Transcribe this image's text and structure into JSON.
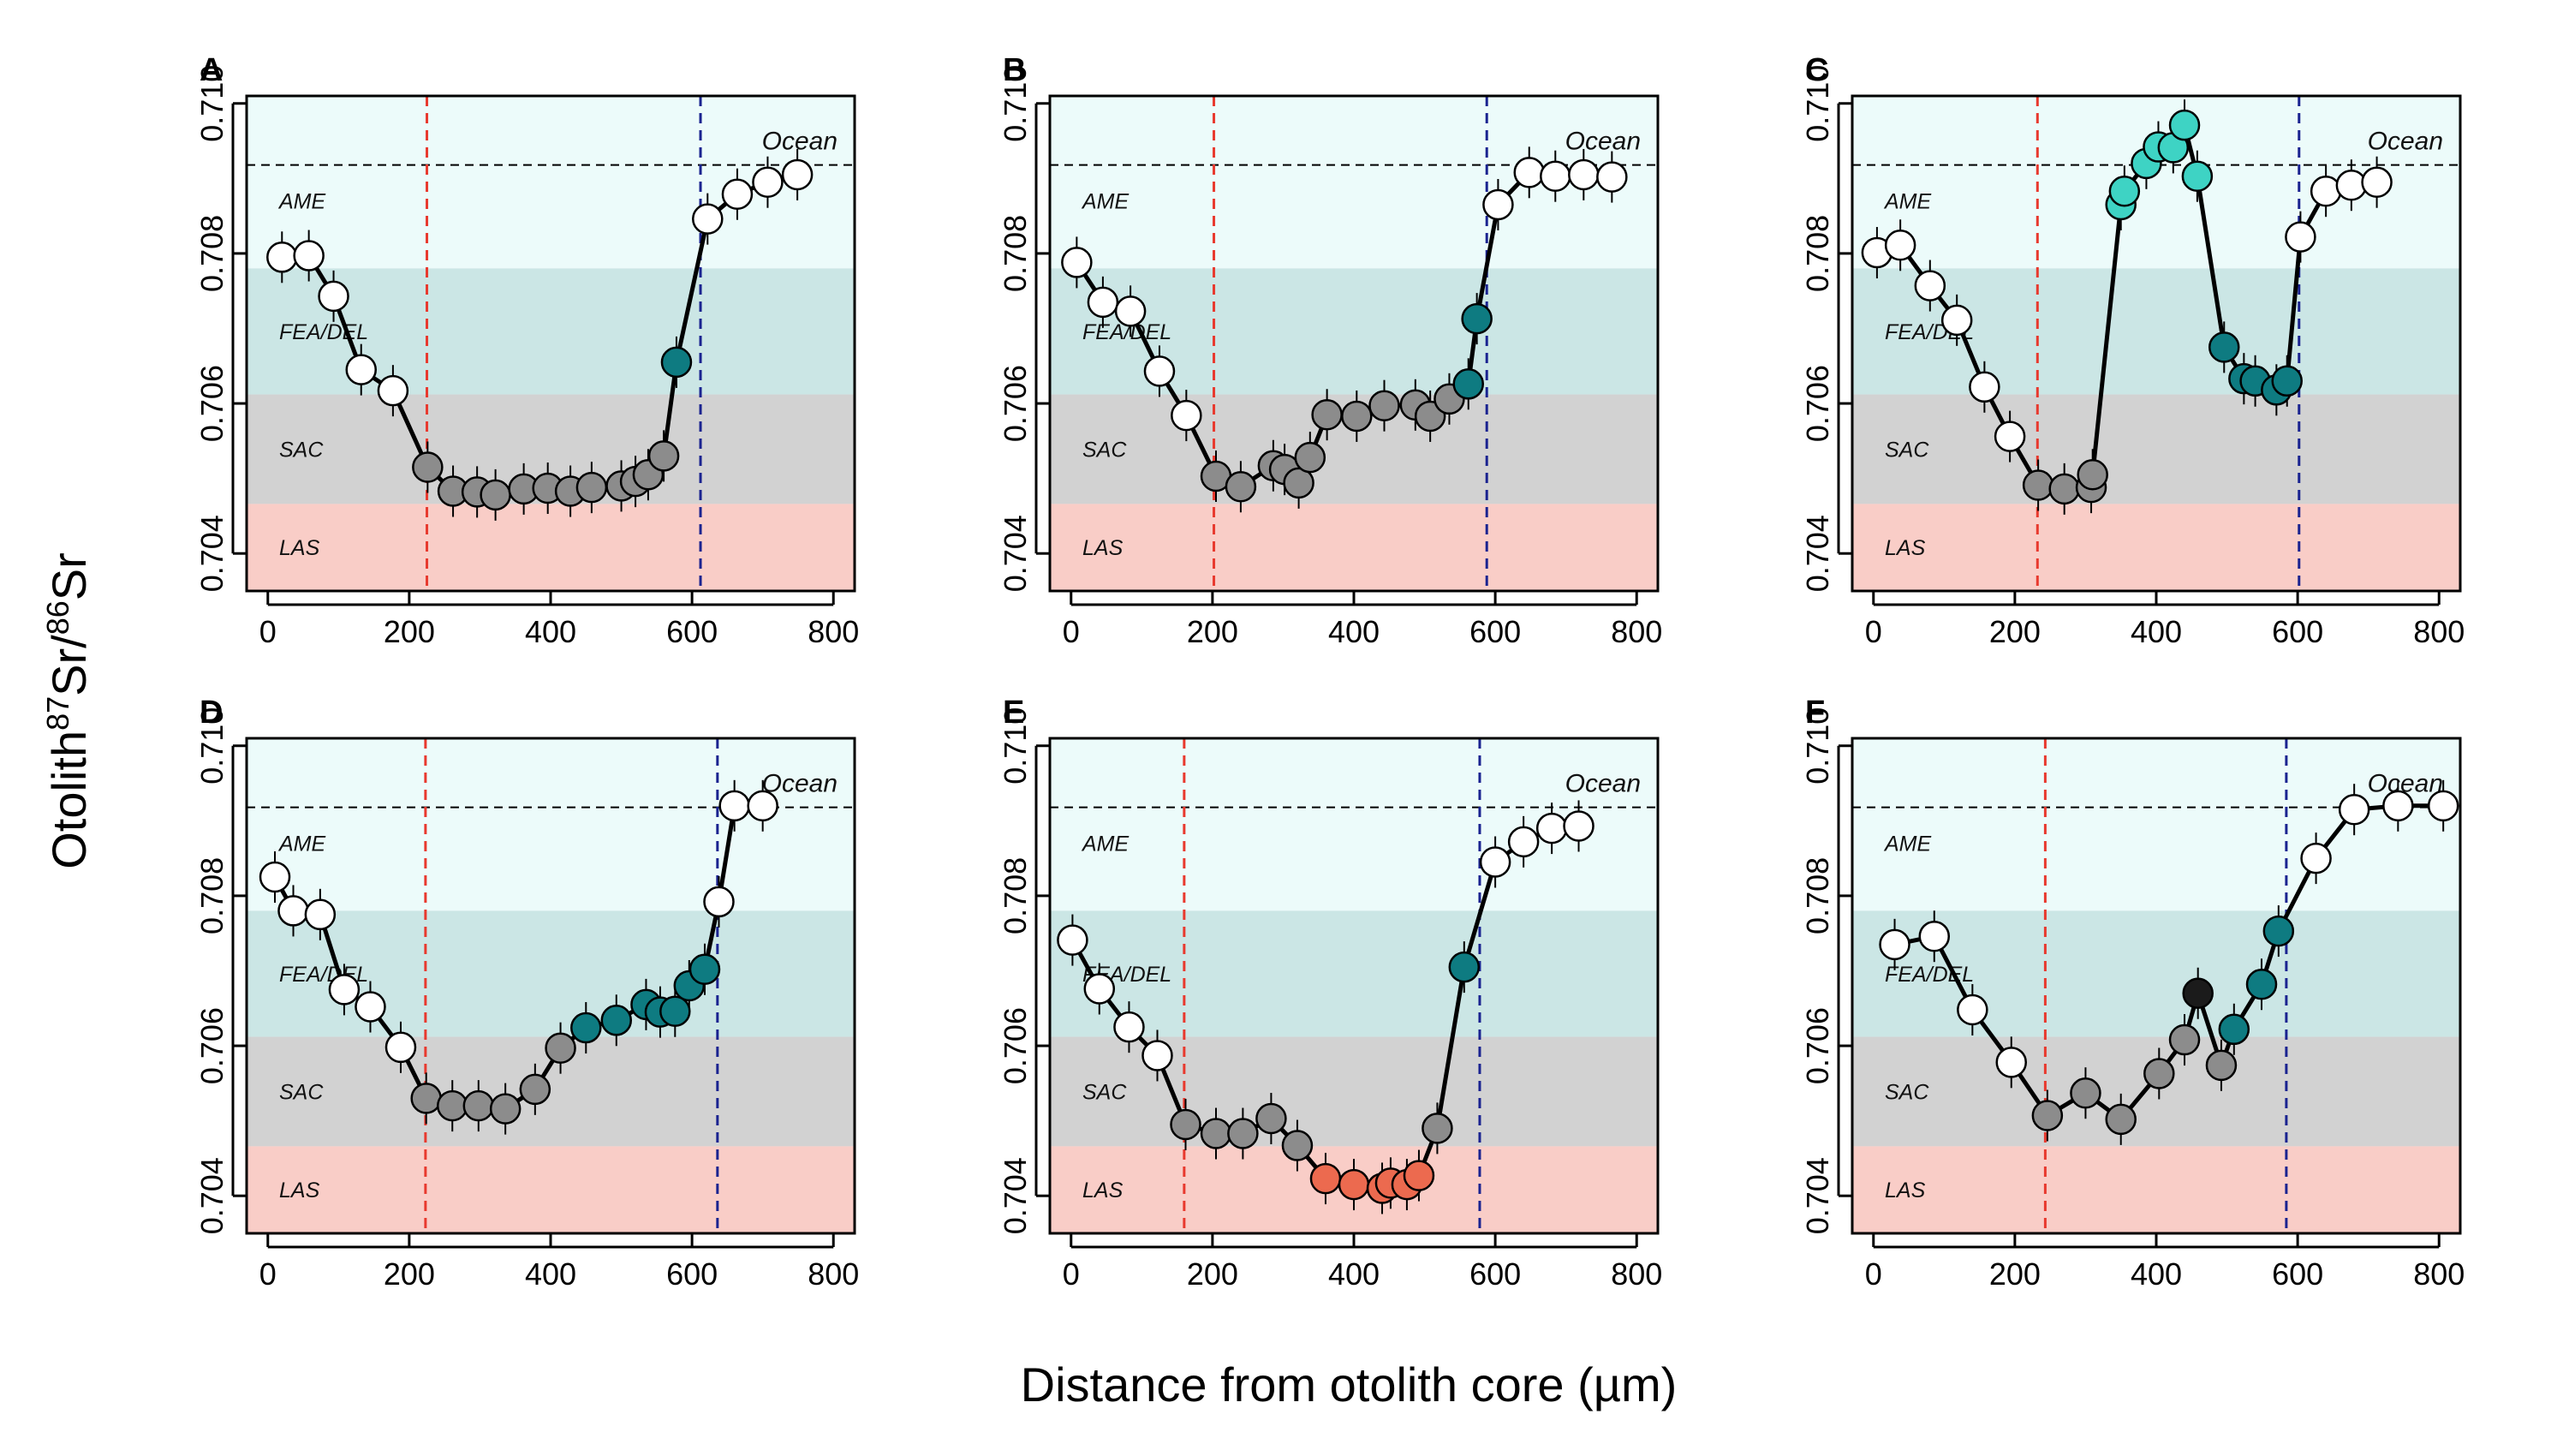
{
  "figure": {
    "ylabel_parts": [
      "Otolith",
      "87",
      "Sr/",
      "86",
      "Sr"
    ],
    "xlabel": "Distance from otolith core (µm)"
  },
  "colors": {
    "ame_zone": "#ecfbfa",
    "fea_zone": "#cbe6e5",
    "sac_zone": "#d2d2d2",
    "las_zone": "#f9cdc7",
    "white_point": "#ffffff",
    "grey_point": "#8c8c8c",
    "teal_point": "#0e7b81",
    "cyan_point": "#3ed3c4",
    "orange_point": "#ec6a4f",
    "black_point": "#1b1b1b",
    "line": "#000000",
    "red_dashed": "#e8392e",
    "blue_dashed": "#1a2390",
    "ocean_dashed": "#000000"
  },
  "chart_data": [
    {
      "type": "scatter",
      "panel": "A",
      "x_ticks": [
        "0",
        "200",
        "400",
        "600",
        "800"
      ],
      "y_ticks": [
        "0.704",
        "0.706",
        "0.708",
        "0.710"
      ],
      "xlim": [
        -30,
        830
      ],
      "ylim": [
        0.7035,
        0.7101
      ],
      "zones": [
        {
          "label": "AME",
          "from": 0.7078,
          "to": 0.7101,
          "color_key": "ame_zone"
        },
        {
          "label": "FEA/DEL",
          "from": 0.70612,
          "to": 0.7078,
          "color_key": "fea_zone"
        },
        {
          "label": "SAC",
          "from": 0.70466,
          "to": 0.70612,
          "color_key": "sac_zone"
        },
        {
          "label": "LAS",
          "from": 0.7035,
          "to": 0.70466,
          "color_key": "las_zone"
        }
      ],
      "ocean_line": 0.70918,
      "ocean_label": "Ocean",
      "red_line_x": 225,
      "blue_line_x": 612,
      "points": [
        [
          20,
          0.70795,
          "white"
        ],
        [
          58,
          0.70797,
          "white"
        ],
        [
          93,
          0.70743,
          "white"
        ],
        [
          132,
          0.70645,
          "white"
        ],
        [
          177,
          0.70617,
          "white"
        ],
        [
          226,
          0.70515,
          "grey"
        ],
        [
          262,
          0.70483,
          "grey"
        ],
        [
          296,
          0.70482,
          "grey"
        ],
        [
          322,
          0.70478,
          "grey"
        ],
        [
          362,
          0.70486,
          "grey"
        ],
        [
          396,
          0.70487,
          "grey"
        ],
        [
          428,
          0.70483,
          "grey"
        ],
        [
          458,
          0.70488,
          "grey"
        ],
        [
          500,
          0.7049,
          "grey"
        ],
        [
          520,
          0.70496,
          "grey"
        ],
        [
          538,
          0.70505,
          "grey"
        ],
        [
          560,
          0.7053,
          "grey"
        ],
        [
          578,
          0.70655,
          "teal"
        ],
        [
          622,
          0.70846,
          "white"
        ],
        [
          664,
          0.70879,
          "white"
        ],
        [
          707,
          0.70895,
          "white"
        ],
        [
          749,
          0.70905,
          "white"
        ]
      ]
    },
    {
      "type": "scatter",
      "panel": "B",
      "x_ticks": [
        "0",
        "200",
        "400",
        "600",
        "800"
      ],
      "y_ticks": [
        "0.704",
        "0.706",
        "0.708",
        "0.710"
      ],
      "xlim": [
        -30,
        830
      ],
      "ylim": [
        0.7035,
        0.7101
      ],
      "zones": [
        {
          "label": "AME",
          "from": 0.7078,
          "to": 0.7101,
          "color_key": "ame_zone"
        },
        {
          "label": "FEA/DEL",
          "from": 0.70612,
          "to": 0.7078,
          "color_key": "fea_zone"
        },
        {
          "label": "SAC",
          "from": 0.70466,
          "to": 0.70612,
          "color_key": "sac_zone"
        },
        {
          "label": "LAS",
          "from": 0.7035,
          "to": 0.70466,
          "color_key": "las_zone"
        }
      ],
      "ocean_line": 0.70918,
      "ocean_label": "Ocean",
      "red_line_x": 202,
      "blue_line_x": 588,
      "points": [
        [
          8,
          0.70788,
          "white"
        ],
        [
          45,
          0.70735,
          "white"
        ],
        [
          84,
          0.70723,
          "white"
        ],
        [
          125,
          0.70643,
          "white"
        ],
        [
          163,
          0.70584,
          "white"
        ],
        [
          205,
          0.70503,
          "grey"
        ],
        [
          240,
          0.70489,
          "grey"
        ],
        [
          286,
          0.70517,
          "grey"
        ],
        [
          302,
          0.70512,
          "grey"
        ],
        [
          322,
          0.70494,
          "grey"
        ],
        [
          338,
          0.70528,
          "grey"
        ],
        [
          362,
          0.70585,
          "grey"
        ],
        [
          404,
          0.70583,
          "grey"
        ],
        [
          443,
          0.70597,
          "grey"
        ],
        [
          487,
          0.70598,
          "grey"
        ],
        [
          508,
          0.70583,
          "grey"
        ],
        [
          535,
          0.70606,
          "grey"
        ],
        [
          562,
          0.70626,
          "teal"
        ],
        [
          574,
          0.70713,
          "teal"
        ],
        [
          604,
          0.70865,
          "white"
        ],
        [
          648,
          0.70908,
          "white"
        ],
        [
          685,
          0.70903,
          "white"
        ],
        [
          725,
          0.70905,
          "white"
        ],
        [
          765,
          0.70902,
          "white"
        ]
      ]
    },
    {
      "type": "scatter",
      "panel": "C",
      "x_ticks": [
        "0",
        "200",
        "400",
        "600",
        "800"
      ],
      "y_ticks": [
        "0.704",
        "0.706",
        "0.708",
        "0.710"
      ],
      "xlim": [
        -30,
        830
      ],
      "ylim": [
        0.7035,
        0.7101
      ],
      "zones": [
        {
          "label": "AME",
          "from": 0.7078,
          "to": 0.7101,
          "color_key": "ame_zone"
        },
        {
          "label": "FEA/DEL",
          "from": 0.70612,
          "to": 0.7078,
          "color_key": "fea_zone"
        },
        {
          "label": "SAC",
          "from": 0.70466,
          "to": 0.70612,
          "color_key": "sac_zone"
        },
        {
          "label": "LAS",
          "from": 0.7035,
          "to": 0.70466,
          "color_key": "las_zone"
        }
      ],
      "ocean_line": 0.70918,
      "ocean_label": "Ocean",
      "red_line_x": 232,
      "blue_line_x": 602,
      "points": [
        [
          5,
          0.70801,
          "white"
        ],
        [
          38,
          0.70811,
          "white"
        ],
        [
          80,
          0.70757,
          "white"
        ],
        [
          118,
          0.70711,
          "white"
        ],
        [
          157,
          0.70622,
          "white"
        ],
        [
          193,
          0.70556,
          "white"
        ],
        [
          233,
          0.70491,
          "grey"
        ],
        [
          270,
          0.70486,
          "grey"
        ],
        [
          308,
          0.70488,
          "grey"
        ],
        [
          310,
          0.70505,
          "grey"
        ],
        [
          350,
          0.70865,
          "cyan"
        ],
        [
          355,
          0.70883,
          "cyan"
        ],
        [
          386,
          0.7092,
          "cyan"
        ],
        [
          403,
          0.70942,
          "cyan"
        ],
        [
          424,
          0.70941,
          "cyan"
        ],
        [
          440,
          0.70971,
          "cyan"
        ],
        [
          458,
          0.70903,
          "cyan"
        ],
        [
          496,
          0.70675,
          "teal"
        ],
        [
          524,
          0.70633,
          "teal"
        ],
        [
          540,
          0.7063,
          "teal"
        ],
        [
          570,
          0.70618,
          "teal"
        ],
        [
          585,
          0.7063,
          "teal"
        ],
        [
          604,
          0.70822,
          "white"
        ],
        [
          640,
          0.70883,
          "white"
        ],
        [
          676,
          0.70891,
          "white"
        ],
        [
          712,
          0.70895,
          "white"
        ]
      ]
    },
    {
      "type": "scatter",
      "panel": "D",
      "x_ticks": [
        "0",
        "200",
        "400",
        "600",
        "800"
      ],
      "y_ticks": [
        "0.704",
        "0.706",
        "0.708",
        "0.710"
      ],
      "xlim": [
        -30,
        830
      ],
      "ylim": [
        0.7035,
        0.7101
      ],
      "zones": [
        {
          "label": "AME",
          "from": 0.7078,
          "to": 0.7101,
          "color_key": "ame_zone"
        },
        {
          "label": "FEA/DEL",
          "from": 0.70612,
          "to": 0.7078,
          "color_key": "fea_zone"
        },
        {
          "label": "SAC",
          "from": 0.70466,
          "to": 0.70612,
          "color_key": "sac_zone"
        },
        {
          "label": "LAS",
          "from": 0.7035,
          "to": 0.70466,
          "color_key": "las_zone"
        }
      ],
      "ocean_line": 0.70918,
      "ocean_label": "Ocean",
      "red_line_x": 223,
      "blue_line_x": 636,
      "points": [
        [
          10,
          0.70825,
          "white"
        ],
        [
          36,
          0.7078,
          "white"
        ],
        [
          74,
          0.70775,
          "white"
        ],
        [
          108,
          0.70675,
          "white"
        ],
        [
          145,
          0.70652,
          "white"
        ],
        [
          188,
          0.70598,
          "white"
        ],
        [
          224,
          0.7053,
          "grey"
        ],
        [
          261,
          0.7052,
          "grey"
        ],
        [
          298,
          0.7052,
          "grey"
        ],
        [
          336,
          0.70516,
          "grey"
        ],
        [
          378,
          0.70542,
          "grey"
        ],
        [
          414,
          0.70597,
          "grey"
        ],
        [
          450,
          0.70624,
          "teal"
        ],
        [
          493,
          0.70634,
          "teal"
        ],
        [
          535,
          0.70655,
          "teal"
        ],
        [
          555,
          0.70645,
          "teal"
        ],
        [
          576,
          0.70646,
          "teal"
        ],
        [
          596,
          0.7068,
          "teal"
        ],
        [
          618,
          0.70702,
          "teal"
        ],
        [
          638,
          0.70792,
          "white"
        ],
        [
          660,
          0.7092,
          "white"
        ],
        [
          700,
          0.7092,
          "white"
        ]
      ]
    },
    {
      "type": "scatter",
      "panel": "E",
      "x_ticks": [
        "0",
        "200",
        "400",
        "600",
        "800"
      ],
      "y_ticks": [
        "0.704",
        "0.706",
        "0.708",
        "0.710"
      ],
      "xlim": [
        -30,
        830
      ],
      "ylim": [
        0.7035,
        0.7101
      ],
      "zones": [
        {
          "label": "AME",
          "from": 0.7078,
          "to": 0.7101,
          "color_key": "ame_zone"
        },
        {
          "label": "FEA/DEL",
          "from": 0.70612,
          "to": 0.7078,
          "color_key": "fea_zone"
        },
        {
          "label": "SAC",
          "from": 0.70466,
          "to": 0.70612,
          "color_key": "sac_zone"
        },
        {
          "label": "LAS",
          "from": 0.7035,
          "to": 0.70466,
          "color_key": "las_zone"
        }
      ],
      "ocean_line": 0.70918,
      "ocean_label": "Ocean",
      "red_line_x": 160,
      "blue_line_x": 578,
      "points": [
        [
          2,
          0.70741,
          "white"
        ],
        [
          40,
          0.70676,
          "white"
        ],
        [
          82,
          0.70625,
          "white"
        ],
        [
          122,
          0.70587,
          "white"
        ],
        [
          162,
          0.70495,
          "grey"
        ],
        [
          205,
          0.70483,
          "grey"
        ],
        [
          243,
          0.70483,
          "grey"
        ],
        [
          283,
          0.70503,
          "grey"
        ],
        [
          320,
          0.70467,
          "grey"
        ],
        [
          360,
          0.70423,
          "orange"
        ],
        [
          400,
          0.70415,
          "orange"
        ],
        [
          440,
          0.7041,
          "orange"
        ],
        [
          452,
          0.70417,
          "orange"
        ],
        [
          475,
          0.70415,
          "orange"
        ],
        [
          492,
          0.70427,
          "orange"
        ],
        [
          518,
          0.7049,
          "grey"
        ],
        [
          556,
          0.70705,
          "teal"
        ],
        [
          600,
          0.70845,
          "white"
        ],
        [
          640,
          0.70872,
          "white"
        ],
        [
          680,
          0.7089,
          "white"
        ],
        [
          718,
          0.70893,
          "white"
        ]
      ]
    },
    {
      "type": "scatter",
      "panel": "F",
      "x_ticks": [
        "0",
        "200",
        "400",
        "600",
        "800"
      ],
      "y_ticks": [
        "0.704",
        "0.706",
        "0.708",
        "0.710"
      ],
      "xlim": [
        -30,
        830
      ],
      "ylim": [
        0.7035,
        0.7101
      ],
      "zones": [
        {
          "label": "AME",
          "from": 0.7078,
          "to": 0.7101,
          "color_key": "ame_zone"
        },
        {
          "label": "FEA/DEL",
          "from": 0.70612,
          "to": 0.7078,
          "color_key": "fea_zone"
        },
        {
          "label": "SAC",
          "from": 0.70466,
          "to": 0.70612,
          "color_key": "sac_zone"
        },
        {
          "label": "LAS",
          "from": 0.7035,
          "to": 0.70466,
          "color_key": "las_zone"
        }
      ],
      "ocean_line": 0.70918,
      "ocean_label": "Ocean",
      "red_line_x": 243,
      "blue_line_x": 584,
      "points": [
        [
          30,
          0.70735,
          "white"
        ],
        [
          86,
          0.70746,
          "white"
        ],
        [
          140,
          0.70648,
          "white"
        ],
        [
          195,
          0.70578,
          "white"
        ],
        [
          246,
          0.70507,
          "grey"
        ],
        [
          300,
          0.70537,
          "grey"
        ],
        [
          350,
          0.70502,
          "grey"
        ],
        [
          404,
          0.70563,
          "grey"
        ],
        [
          440,
          0.70608,
          "grey"
        ],
        [
          459,
          0.7067,
          "black"
        ],
        [
          492,
          0.70574,
          "grey"
        ],
        [
          510,
          0.70622,
          "teal"
        ],
        [
          549,
          0.70682,
          "teal"
        ],
        [
          573,
          0.70753,
          "teal"
        ],
        [
          626,
          0.7085,
          "white"
        ],
        [
          680,
          0.70915,
          "white"
        ],
        [
          742,
          0.7092,
          "white"
        ],
        [
          806,
          0.7092,
          "white"
        ]
      ]
    }
  ]
}
